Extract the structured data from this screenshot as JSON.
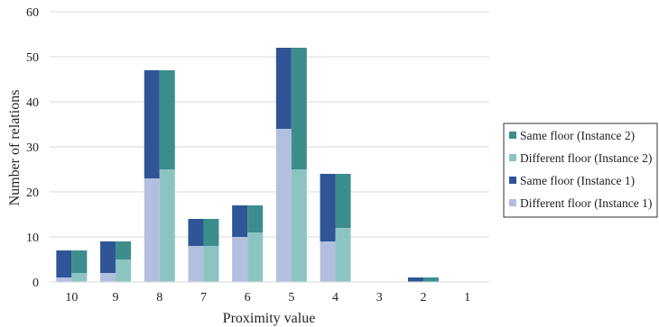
{
  "chart_data": {
    "type": "bar",
    "stacked": true,
    "grouped": true,
    "categories": [
      "10",
      "9",
      "8",
      "7",
      "6",
      "5",
      "4",
      "3",
      "2",
      "1"
    ],
    "xlabel": "Proximity value",
    "ylabel": "Number of relations",
    "ylim": [
      0,
      60
    ],
    "yticks": [
      "0",
      "10",
      "20",
      "30",
      "40",
      "50",
      "60"
    ],
    "grid": true,
    "legend_position": "right",
    "groups": [
      {
        "name": "Instance 1",
        "series": [
          {
            "name": "Different floor (Instance 1)",
            "color": "#b3bfdf",
            "values": [
              1,
              2,
              23,
              8,
              10,
              34,
              9,
              0,
              0,
              0
            ]
          },
          {
            "name": "Same floor (Instance 1)",
            "color": "#2f5597",
            "values": [
              6,
              7,
              24,
              6,
              7,
              18,
              15,
              0,
              1,
              0
            ]
          }
        ]
      },
      {
        "name": "Instance 2",
        "series": [
          {
            "name": "Different floor (Instance 2)",
            "color": "#8cc4c2",
            "values": [
              2,
              5,
              25,
              8,
              11,
              25,
              12,
              0,
              0,
              0
            ]
          },
          {
            "name": "Same floor (Instance 2)",
            "color": "#3c8e8c",
            "values": [
              5,
              4,
              22,
              6,
              6,
              27,
              12,
              0,
              1,
              0
            ]
          }
        ]
      }
    ],
    "legend": [
      "Same floor (Instance 2)",
      "Different floor (Instance 2)",
      "Same floor (Instance 1)",
      "Different floor (Instance 1)"
    ]
  }
}
